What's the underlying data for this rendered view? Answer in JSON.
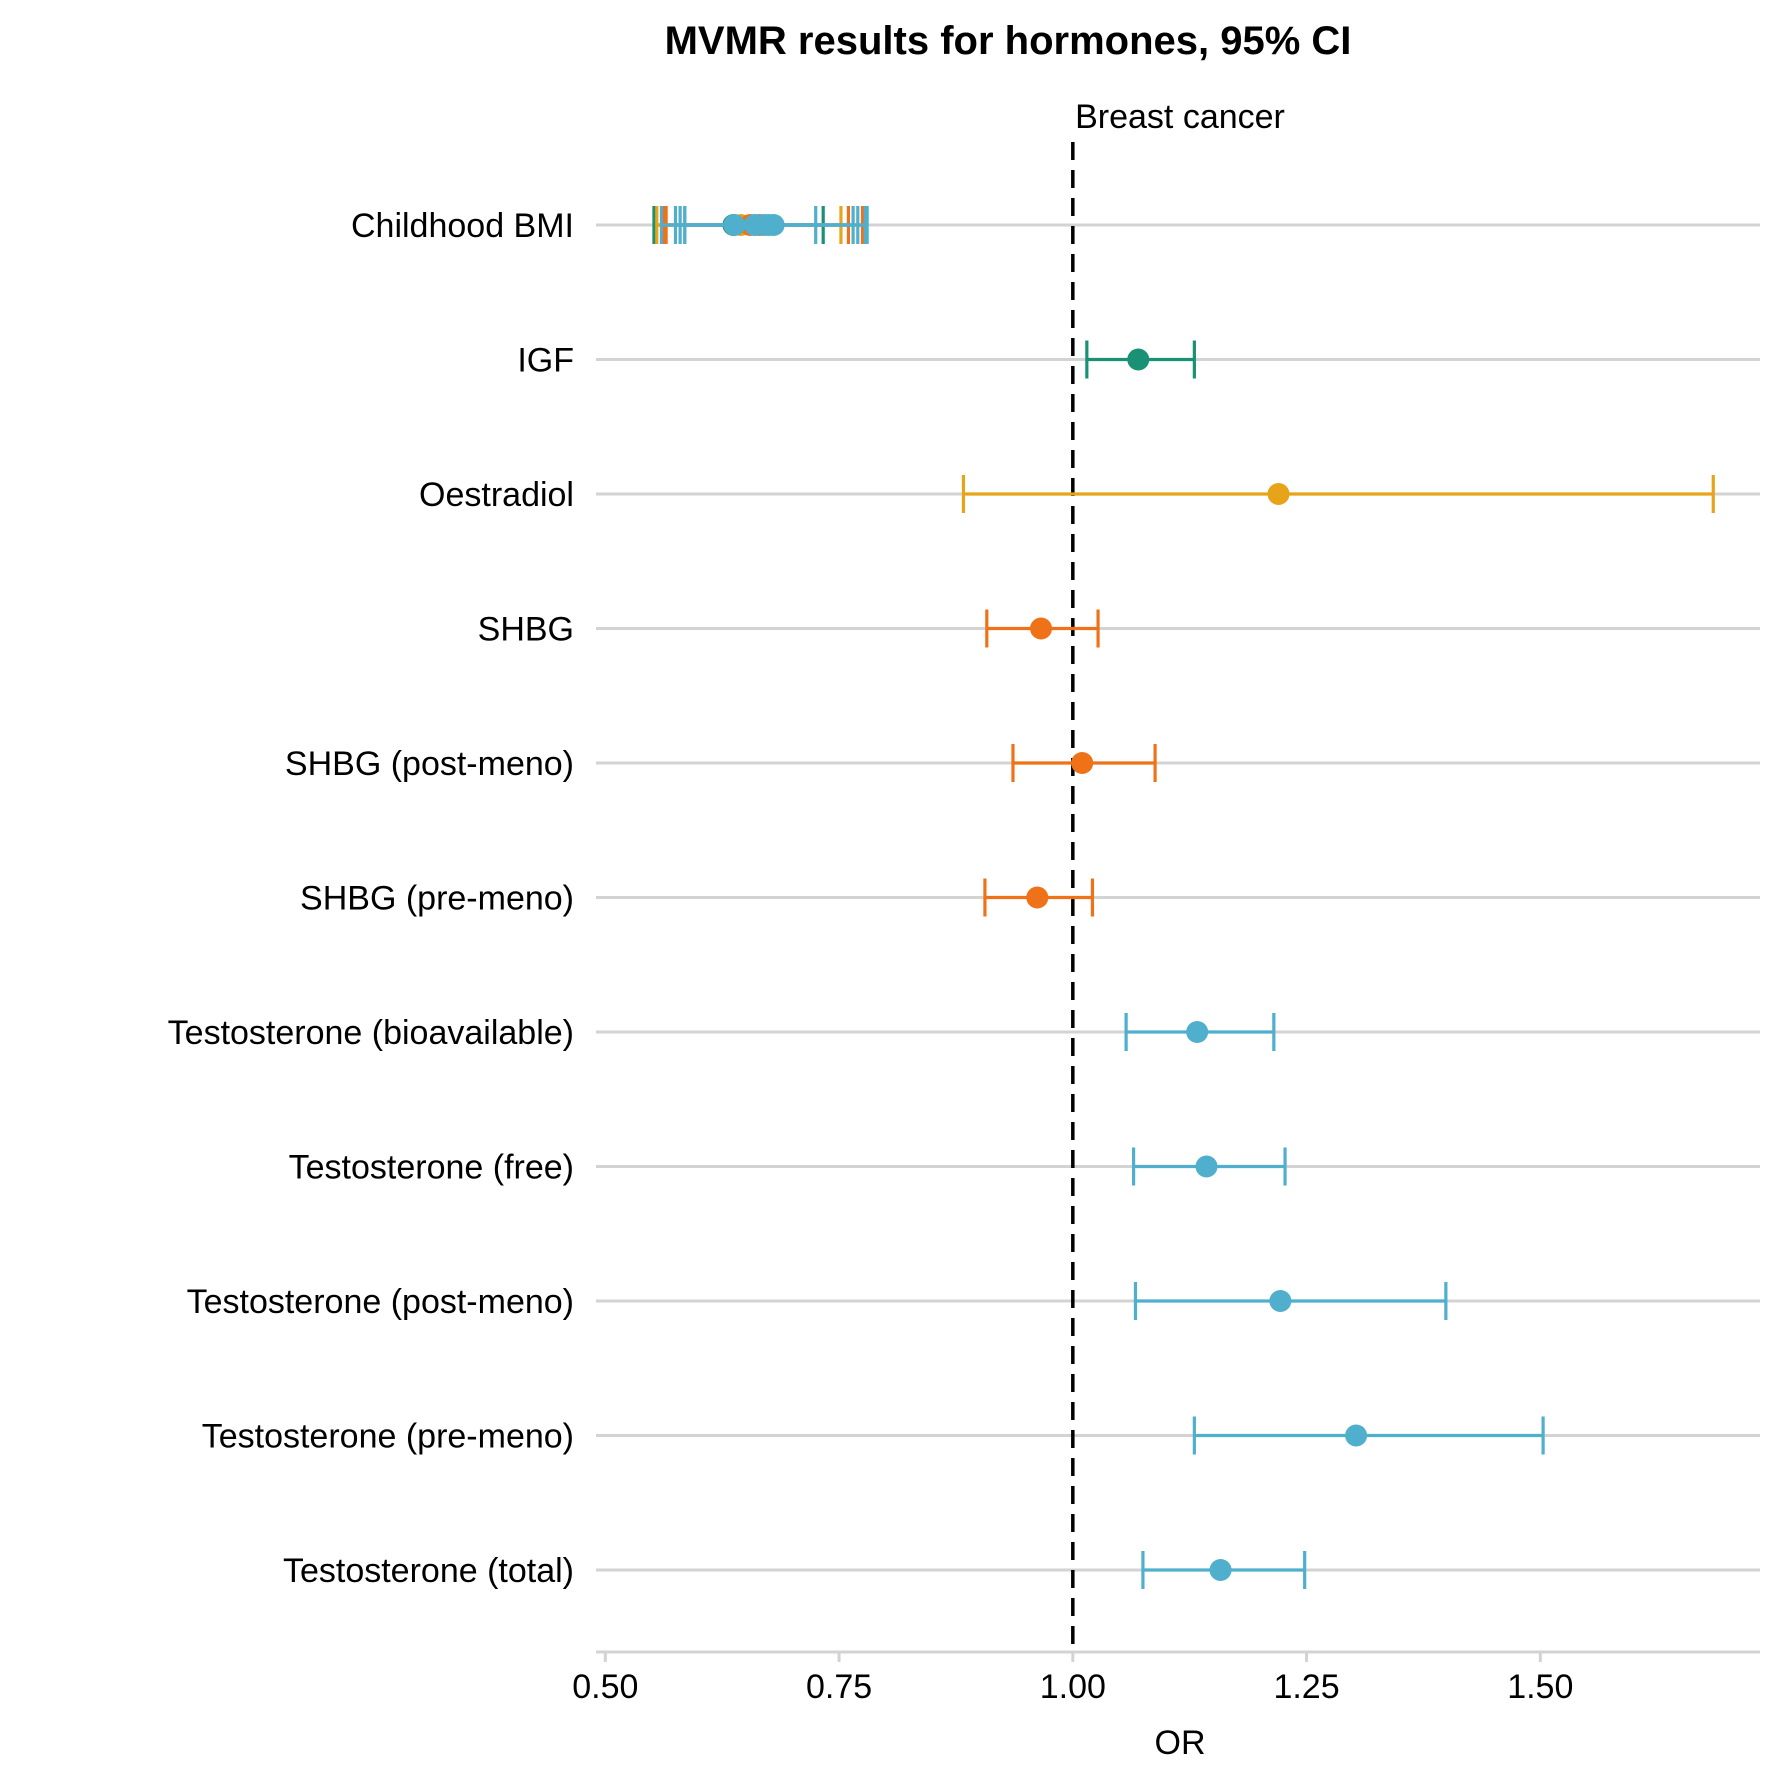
{
  "chart_data": {
    "type": "forest",
    "title": "MVMR results for hormones, 95% CI",
    "facet_label": "Breast cancer",
    "xlabel": "OR",
    "ylabel": "",
    "xlim": [
      0.49,
      1.735
    ],
    "reference_line": 1.0,
    "x_ticks": [
      0.5,
      0.75,
      1.0,
      1.25,
      1.5
    ],
    "x_tick_labels": [
      "0.50",
      "0.75",
      "1.00",
      "1.25",
      "1.50"
    ],
    "grid": "horizontal rows only",
    "legend": "none",
    "colors": {
      "teal": "#1a9175",
      "gold": "#e8a419",
      "orange": "#ef7219",
      "blue": "#4fafcd"
    },
    "rows": [
      {
        "label": "Childhood BMI",
        "estimates": [
          {
            "or": 0.637,
            "lo": 0.552,
            "hi": 0.733,
            "color": "#1a9175"
          },
          {
            "or": 0.645,
            "lo": 0.555,
            "hi": 0.752,
            "color": "#e8a419"
          },
          {
            "or": 0.655,
            "lo": 0.562,
            "hi": 0.76,
            "color": "#ef7219"
          },
          {
            "or": 0.665,
            "lo": 0.565,
            "hi": 0.775,
            "color": "#ef7219"
          },
          {
            "or": 0.67,
            "lo": 0.58,
            "hi": 0.77,
            "color": "#4fafcd"
          },
          {
            "or": 0.66,
            "lo": 0.575,
            "hi": 0.765,
            "color": "#4fafcd"
          },
          {
            "or": 0.675,
            "lo": 0.585,
            "hi": 0.78,
            "color": "#4fafcd"
          },
          {
            "or": 0.68,
            "lo": 0.585,
            "hi": 0.778,
            "color": "#4fafcd"
          },
          {
            "or": 0.638,
            "lo": 0.56,
            "hi": 0.725,
            "color": "#4fafcd"
          }
        ]
      },
      {
        "label": "IGF",
        "estimates": [
          {
            "or": 1.07,
            "lo": 1.015,
            "hi": 1.13,
            "color": "#1a9175"
          }
        ]
      },
      {
        "label": "Oestradiol",
        "estimates": [
          {
            "or": 1.22,
            "lo": 0.883,
            "hi": 1.685,
            "color": "#e8a419"
          }
        ]
      },
      {
        "label": "SHBG",
        "estimates": [
          {
            "or": 0.966,
            "lo": 0.908,
            "hi": 1.027,
            "color": "#ef7219"
          }
        ]
      },
      {
        "label": "SHBG (post-meno)",
        "estimates": [
          {
            "or": 1.01,
            "lo": 0.936,
            "hi": 1.088,
            "color": "#ef7219"
          }
        ]
      },
      {
        "label": "SHBG (pre-meno)",
        "estimates": [
          {
            "or": 0.962,
            "lo": 0.906,
            "hi": 1.021,
            "color": "#ef7219"
          }
        ]
      },
      {
        "label": "Testosterone (bioavailable)",
        "estimates": [
          {
            "or": 1.133,
            "lo": 1.057,
            "hi": 1.215,
            "color": "#4fafcd"
          }
        ]
      },
      {
        "label": "Testosterone (free)",
        "estimates": [
          {
            "or": 1.143,
            "lo": 1.065,
            "hi": 1.227,
            "color": "#4fafcd"
          }
        ]
      },
      {
        "label": "Testosterone (post-meno)",
        "estimates": [
          {
            "or": 1.222,
            "lo": 1.067,
            "hi": 1.399,
            "color": "#4fafcd"
          }
        ]
      },
      {
        "label": "Testosterone (pre-meno)",
        "estimates": [
          {
            "or": 1.303,
            "lo": 1.13,
            "hi": 1.503,
            "color": "#4fafcd"
          }
        ]
      },
      {
        "label": "Testosterone (total)",
        "estimates": [
          {
            "or": 1.158,
            "lo": 1.075,
            "hi": 1.248,
            "color": "#4fafcd"
          }
        ]
      }
    ]
  }
}
